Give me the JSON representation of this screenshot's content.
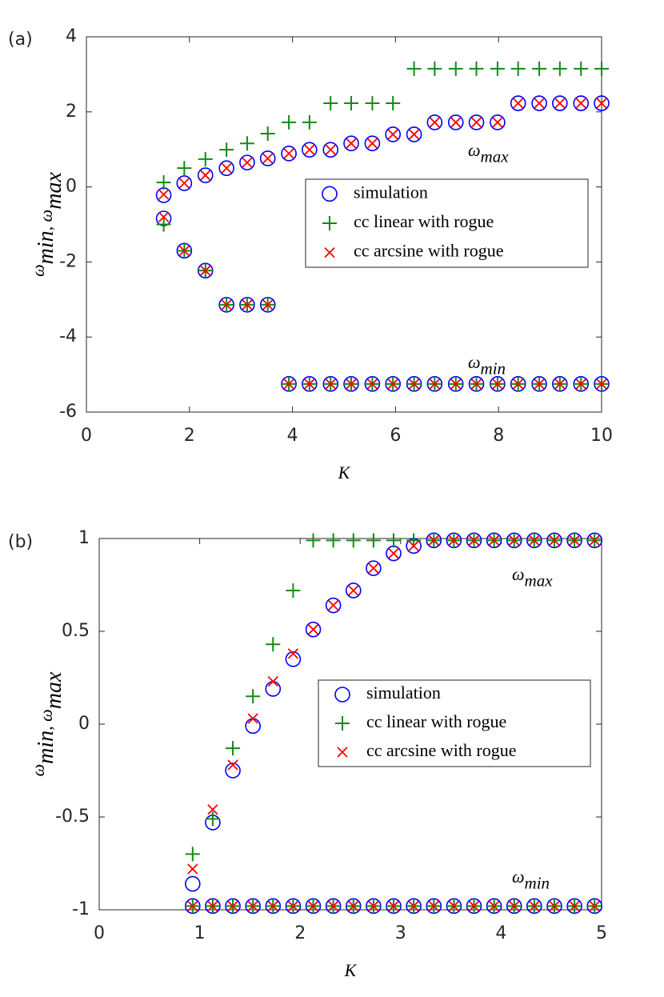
{
  "chart_data": [
    {
      "type": "scatter",
      "panel_label": "(a)",
      "xlabel": "K",
      "ylabel": [
        {
          "text": "ω",
          "sub": "min"
        },
        {
          "text": ", ω",
          "sub": "max"
        }
      ],
      "annotations": [
        {
          "text": "ω",
          "sub": "max"
        },
        {
          "text": "ω",
          "sub": "min"
        }
      ],
      "xlim": [
        0,
        10
      ],
      "xticks": [
        0,
        2,
        4,
        6,
        8,
        10
      ],
      "ylim": [
        -6,
        4
      ],
      "yticks": [
        -6,
        -4,
        -2,
        0,
        2,
        4
      ],
      "legend": "upper right",
      "series": [
        {
          "name": "simulation",
          "marker": "circle",
          "color": "#0000ff",
          "x": [
            1.5,
            1.9,
            2.31,
            2.72,
            3.12,
            3.52,
            3.93,
            4.33,
            4.74,
            5.14,
            5.55,
            5.95,
            6.36,
            6.76,
            7.17,
            7.57,
            7.98,
            8.38,
            8.79,
            9.19,
            9.6,
            10,
            1.5,
            1.9,
            2.31,
            2.72,
            3.12,
            3.52,
            3.93,
            4.33,
            4.74,
            5.14,
            5.55,
            5.95,
            6.36,
            6.76,
            7.17,
            7.57,
            7.98,
            8.38,
            8.79,
            9.19,
            9.6,
            10
          ],
          "values": [
            -0.22,
            0.1,
            0.31,
            0.5,
            0.65,
            0.76,
            0.89,
            0.99,
            0.99,
            1.16,
            1.16,
            1.4,
            1.4,
            1.72,
            1.72,
            1.72,
            1.72,
            2.23,
            2.23,
            2.23,
            2.23,
            2.23,
            -0.84,
            -1.7,
            -2.23,
            -3.14,
            -3.14,
            -3.14,
            -5.25,
            -5.25,
            -5.25,
            -5.25,
            -5.25,
            -5.25,
            -5.25,
            -5.25,
            -5.25,
            -5.25,
            -5.25,
            -5.25,
            -5.25,
            -5.25,
            -5.25,
            -5.25
          ]
        },
        {
          "name": "cc linear with rogue",
          "marker": "plus",
          "color": "#138a13",
          "x": [
            1.5,
            1.9,
            2.31,
            2.72,
            3.12,
            3.52,
            3.93,
            4.33,
            4.74,
            5.14,
            5.55,
            5.95,
            6.36,
            6.76,
            7.17,
            7.57,
            7.98,
            8.38,
            8.79,
            9.19,
            9.6,
            10,
            1.5,
            1.9,
            2.31,
            2.72,
            3.12,
            3.52,
            3.93,
            4.33,
            4.74,
            5.14,
            5.55,
            5.95,
            6.36,
            6.76,
            7.17,
            7.57,
            7.98,
            8.38,
            8.79,
            9.19,
            9.6,
            10
          ],
          "values": [
            0.12,
            0.5,
            0.74,
            0.99,
            1.16,
            1.42,
            1.72,
            1.72,
            2.23,
            2.23,
            2.23,
            2.23,
            3.15,
            3.15,
            3.15,
            3.15,
            3.15,
            3.15,
            3.15,
            3.15,
            3.15,
            3.15,
            -1.0,
            -1.7,
            -2.23,
            -3.14,
            -3.14,
            -3.14,
            -5.25,
            -5.25,
            -5.25,
            -5.25,
            -5.25,
            -5.25,
            -5.25,
            -5.25,
            -5.25,
            -5.25,
            -5.25,
            -5.25,
            -5.25,
            -5.25,
            -5.25,
            -5.25
          ]
        },
        {
          "name": "cc arcsine with rogue",
          "marker": "cross",
          "color": "#ff0000",
          "x": [
            1.5,
            1.9,
            2.31,
            2.72,
            3.12,
            3.52,
            3.93,
            4.33,
            4.74,
            5.14,
            5.55,
            5.95,
            6.36,
            6.76,
            7.17,
            7.57,
            7.98,
            8.38,
            8.79,
            9.19,
            9.6,
            10,
            1.5,
            1.9,
            2.31,
            2.72,
            3.12,
            3.52,
            3.93,
            4.33,
            4.74,
            5.14,
            5.55,
            5.95,
            6.36,
            6.76,
            7.17,
            7.57,
            7.98,
            8.38,
            8.79,
            9.19,
            9.6,
            10
          ],
          "values": [
            -0.2,
            0.1,
            0.31,
            0.5,
            0.65,
            0.76,
            0.89,
            0.99,
            0.99,
            1.16,
            1.16,
            1.4,
            1.4,
            1.72,
            1.72,
            1.72,
            1.72,
            2.23,
            2.23,
            2.23,
            2.23,
            2.23,
            -0.8,
            -1.7,
            -2.23,
            -3.14,
            -3.14,
            -3.14,
            -5.25,
            -5.25,
            -5.25,
            -5.25,
            -5.25,
            -5.25,
            -5.25,
            -5.25,
            -5.25,
            -5.25,
            -5.25,
            -5.25,
            -5.25,
            -5.25,
            -5.25,
            -5.25
          ]
        }
      ]
    },
    {
      "type": "scatter",
      "panel_label": "(b)",
      "xlabel": "K",
      "ylabel": [
        {
          "text": "ω",
          "sub": "min"
        },
        {
          "text": ", ω",
          "sub": "max"
        }
      ],
      "annotations": [
        {
          "text": "ω",
          "sub": "max"
        },
        {
          "text": "ω",
          "sub": "min"
        }
      ],
      "xlim": [
        0,
        5
      ],
      "xticks": [
        0,
        1,
        2,
        3,
        4,
        5
      ],
      "ylim": [
        -1,
        1
      ],
      "yticks": [
        -1,
        -0.5,
        0,
        0.5,
        1
      ],
      "legend": "center right",
      "series": [
        {
          "name": "simulation",
          "marker": "circle",
          "color": "#0000ff",
          "x": [
            0.93,
            1.13,
            1.33,
            1.53,
            1.73,
            1.93,
            2.13,
            2.33,
            2.53,
            2.73,
            2.93,
            3.13,
            3.33,
            3.53,
            3.73,
            3.93,
            4.13,
            4.33,
            4.53,
            4.73,
            4.93,
            0.93,
            1.13,
            1.33,
            1.53,
            1.73,
            1.93,
            2.13,
            2.33,
            2.53,
            2.73,
            2.93,
            3.13,
            3.33,
            3.53,
            3.73,
            3.93,
            4.13,
            4.33,
            4.53,
            4.73,
            4.93
          ],
          "values": [
            -0.86,
            -0.53,
            -0.25,
            -0.01,
            0.19,
            0.35,
            0.51,
            0.64,
            0.72,
            0.84,
            0.92,
            0.96,
            0.99,
            0.99,
            0.99,
            0.99,
            0.99,
            0.99,
            0.99,
            0.99,
            0.99,
            -0.98,
            -0.98,
            -0.98,
            -0.98,
            -0.98,
            -0.98,
            -0.98,
            -0.98,
            -0.98,
            -0.98,
            -0.98,
            -0.98,
            -0.98,
            -0.98,
            -0.98,
            -0.98,
            -0.98,
            -0.98,
            -0.98,
            -0.98,
            -0.98
          ]
        },
        {
          "name": "cc linear with rogue",
          "marker": "plus",
          "color": "#138a13",
          "x": [
            0.93,
            1.13,
            1.33,
            1.53,
            1.73,
            1.93,
            2.13,
            2.33,
            2.53,
            2.73,
            2.93,
            3.13,
            3.33,
            3.53,
            3.73,
            3.93,
            4.13,
            4.33,
            4.53,
            4.73,
            4.93,
            0.93,
            1.13,
            1.33,
            1.53,
            1.73,
            1.93,
            2.13,
            2.33,
            2.53,
            2.73,
            2.93,
            3.13,
            3.33,
            3.53,
            3.73,
            3.93,
            4.13,
            4.33,
            4.53,
            4.73,
            4.93
          ],
          "values": [
            -0.7,
            -0.51,
            -0.13,
            0.15,
            0.43,
            0.72,
            0.99,
            0.99,
            0.99,
            0.99,
            0.99,
            0.99,
            0.99,
            0.99,
            0.99,
            0.99,
            0.99,
            0.99,
            0.99,
            0.99,
            0.99,
            -0.98,
            -0.98,
            -0.98,
            -0.98,
            -0.98,
            -0.98,
            -0.98,
            -0.98,
            -0.98,
            -0.98,
            -0.98,
            -0.98,
            -0.98,
            -0.98,
            -0.98,
            -0.98,
            -0.98,
            -0.98,
            -0.98,
            -0.98,
            -0.98
          ]
        },
        {
          "name": "cc arcsine with rogue",
          "marker": "cross",
          "color": "#ff0000",
          "x": [
            0.93,
            1.13,
            1.33,
            1.53,
            1.73,
            1.93,
            2.13,
            2.33,
            2.53,
            2.73,
            2.93,
            3.13,
            3.33,
            3.53,
            3.73,
            3.93,
            4.13,
            4.33,
            4.53,
            4.73,
            4.93,
            0.93,
            1.13,
            1.33,
            1.53,
            1.73,
            1.93,
            2.13,
            2.33,
            2.53,
            2.73,
            2.93,
            3.13,
            3.33,
            3.53,
            3.73,
            3.93,
            4.13,
            4.33,
            4.53,
            4.73,
            4.93
          ],
          "values": [
            -0.78,
            -0.46,
            -0.22,
            0.03,
            0.23,
            0.38,
            0.51,
            0.64,
            0.72,
            0.84,
            0.92,
            0.96,
            0.99,
            0.99,
            0.99,
            0.99,
            0.99,
            0.99,
            0.99,
            0.99,
            0.99,
            -0.98,
            -0.98,
            -0.98,
            -0.98,
            -0.98,
            -0.98,
            -0.98,
            -0.98,
            -0.98,
            -0.98,
            -0.98,
            -0.98,
            -0.98,
            -0.98,
            -0.98,
            -0.98,
            -0.98,
            -0.98,
            -0.98,
            -0.98,
            -0.98
          ]
        }
      ]
    }
  ]
}
